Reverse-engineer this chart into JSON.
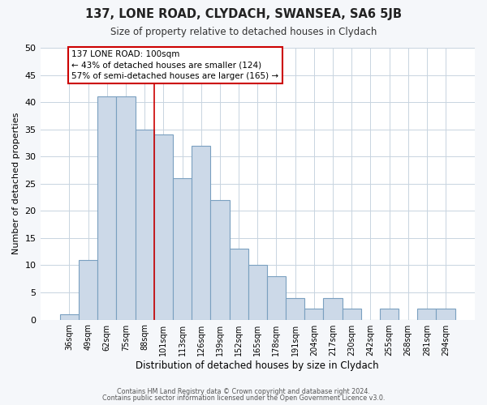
{
  "title": "137, LONE ROAD, CLYDACH, SWANSEA, SA6 5JB",
  "subtitle": "Size of property relative to detached houses in Clydach",
  "xlabel": "Distribution of detached houses by size in Clydach",
  "ylabel": "Number of detached properties",
  "bar_color": "#ccd9e8",
  "bar_edgecolor": "#7aa0c0",
  "categories": [
    "36sqm",
    "49sqm",
    "62sqm",
    "75sqm",
    "88sqm",
    "101sqm",
    "113sqm",
    "126sqm",
    "139sqm",
    "152sqm",
    "165sqm",
    "178sqm",
    "191sqm",
    "204sqm",
    "217sqm",
    "230sqm",
    "242sqm",
    "255sqm",
    "268sqm",
    "281sqm",
    "294sqm"
  ],
  "values": [
    1,
    11,
    41,
    41,
    35,
    34,
    26,
    32,
    22,
    13,
    10,
    8,
    4,
    2,
    4,
    2,
    0,
    2,
    0,
    2,
    2
  ],
  "ylim": [
    0,
    50
  ],
  "yticks": [
    0,
    5,
    10,
    15,
    20,
    25,
    30,
    35,
    40,
    45,
    50
  ],
  "vline_index": 5,
  "vline_color": "#cc0000",
  "annotation_title": "137 LONE ROAD: 100sqm",
  "annotation_line1": "← 43% of detached houses are smaller (124)",
  "annotation_line2": "57% of semi-detached houses are larger (165) →",
  "annotation_box_edgecolor": "#cc0000",
  "footer_line1": "Contains HM Land Registry data © Crown copyright and database right 2024.",
  "footer_line2": "Contains public sector information licensed under the Open Government Licence v3.0.",
  "background_color": "#f5f7fa",
  "plot_background": "#ffffff",
  "grid_color": "#c8d4e0"
}
